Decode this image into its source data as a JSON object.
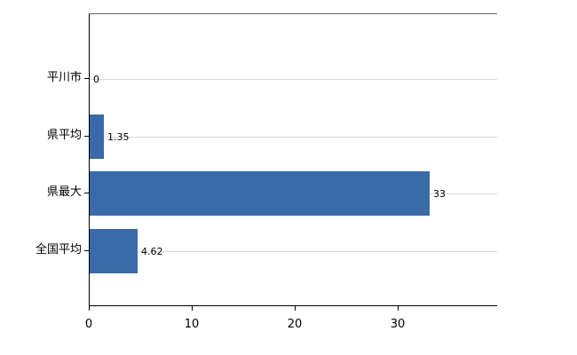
{
  "chart_data": {
    "type": "bar",
    "orientation": "horizontal",
    "title": "",
    "xlabel": "",
    "ylabel": "",
    "categories": [
      "平川市",
      "県平均",
      "県最大",
      "全国平均"
    ],
    "values": [
      0,
      1.35,
      33,
      4.62
    ],
    "value_labels": [
      "0",
      "1.35",
      "33",
      "4.62"
    ],
    "x_ticks": [
      0,
      10,
      20,
      30
    ],
    "xlim": [
      0,
      39.6
    ],
    "legend": "none",
    "grid": "light horizontal lines at each category center",
    "bar_color": "#3a6ba8",
    "axis_color": "#000000",
    "gridline_color": "#d9d9d9",
    "background_color": "#ffffff"
  }
}
